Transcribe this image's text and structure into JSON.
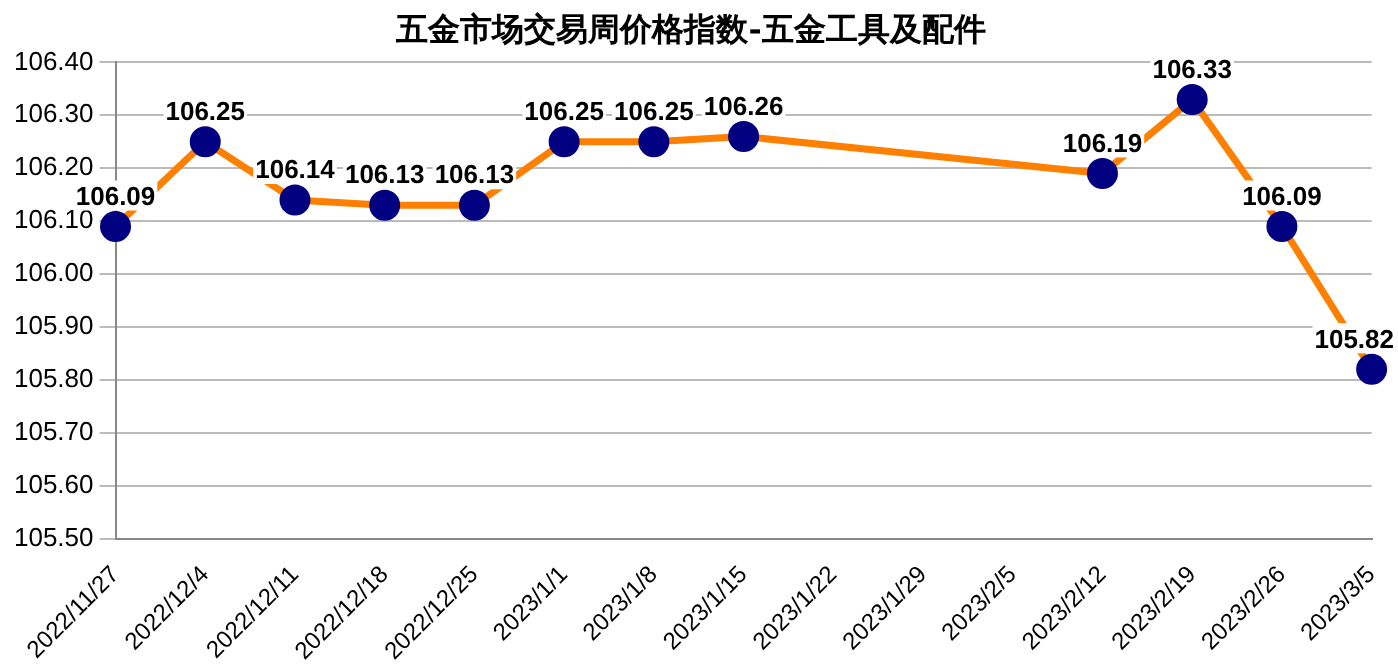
{
  "chart_data": {
    "type": "line",
    "title": "五金市场交易周价格指数-五金工具及配件",
    "categories": [
      "2022/11/27",
      "2022/12/4",
      "2022/12/11",
      "2022/12/18",
      "2022/12/25",
      "2023/1/1",
      "2023/1/8",
      "2023/1/15",
      "2023/1/22",
      "2023/1/29",
      "2023/2/5",
      "2023/2/12",
      "2023/2/19",
      "2023/2/26",
      "2023/3/5"
    ],
    "series": [
      {
        "color": "#ff8000",
        "values": [
          106.09,
          106.25,
          106.14,
          106.13,
          106.13,
          106.25,
          106.25,
          106.26,
          null,
          null,
          null,
          106.19,
          106.33,
          106.09,
          105.82
        ]
      }
    ],
    "marker": "circle",
    "data_labels": true,
    "grid": "y",
    "legend": false,
    "ylim": [
      105.5,
      106.4
    ],
    "yticks": [
      {
        "value": 105.5,
        "label": "105.50"
      },
      {
        "value": 105.6,
        "label": "105.60"
      },
      {
        "value": 105.7,
        "label": "105.70"
      },
      {
        "value": 105.8,
        "label": "105.80"
      },
      {
        "value": 105.9,
        "label": "105.90"
      },
      {
        "value": 106,
        "label": "106.00"
      },
      {
        "value": 106.1,
        "label": "106.10"
      },
      {
        "value": 106.2,
        "label": "106.20"
      },
      {
        "value": 106.3,
        "label": "106.30"
      },
      {
        "value": 106.4,
        "label": "106.40"
      }
    ]
  }
}
